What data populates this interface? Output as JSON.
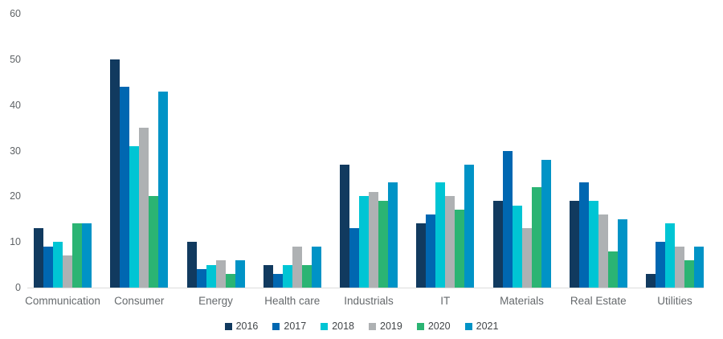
{
  "chart_data": {
    "type": "bar",
    "title": "",
    "categories": [
      "Communication",
      "Consumer",
      "Energy",
      "Health care",
      "Industrials",
      "IT",
      "Materials",
      "Real Estate",
      "Utilities"
    ],
    "series": [
      {
        "name": "2016",
        "color": "#113a5f",
        "values": [
          13,
          50,
          10,
          5,
          27,
          14,
          19,
          19,
          3
        ]
      },
      {
        "name": "2017",
        "color": "#0067b1",
        "values": [
          9,
          44,
          4,
          3,
          13,
          16,
          30,
          23,
          10
        ]
      },
      {
        "name": "2018",
        "color": "#00c5d4",
        "values": [
          10,
          31,
          5,
          5,
          20,
          23,
          18,
          19,
          14
        ]
      },
      {
        "name": "2019",
        "color": "#aeb1b3",
        "values": [
          7,
          35,
          6,
          9,
          21,
          20,
          13,
          16,
          9
        ]
      },
      {
        "name": "2020",
        "color": "#2bb473",
        "values": [
          14,
          20,
          3,
          5,
          19,
          17,
          22,
          8,
          6
        ]
      },
      {
        "name": "2021",
        "color": "#0093c6",
        "values": [
          14,
          43,
          6,
          9,
          23,
          27,
          28,
          15,
          9
        ]
      }
    ],
    "xlabel": "",
    "ylabel": "",
    "ylim": [
      0,
      60
    ],
    "yticks": [
      0,
      10,
      20,
      30,
      40,
      50,
      60
    ],
    "grid": false,
    "legend_position": "bottom",
    "axis_line_color": "#dcdcdc"
  }
}
